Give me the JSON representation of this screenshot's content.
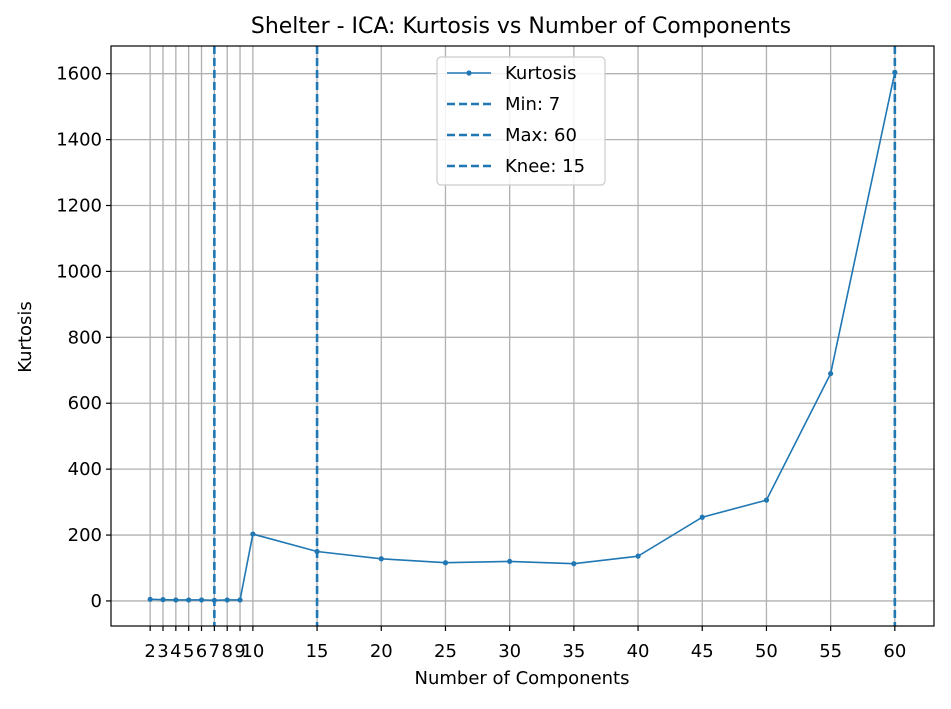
{
  "colors": {
    "series": "#1f77b4",
    "grid": "#b0b0b0",
    "axes": "#000000",
    "background": "#ffffff"
  },
  "chart_data": {
    "type": "line",
    "title": "Shelter - ICA: Kurtosis vs Number of Components",
    "xlabel": "Number of Components",
    "ylabel": "Kurtosis",
    "xlim": [
      -1.05,
      63.05
    ],
    "ylim": [
      -76,
      1684
    ],
    "grid": true,
    "legend_position": "upper center",
    "x_ticks": [
      2,
      3,
      4,
      5,
      6,
      7,
      8,
      9,
      10,
      15,
      20,
      25,
      30,
      35,
      40,
      45,
      50,
      55,
      60
    ],
    "x_tick_labels": [
      "2",
      "3",
      "4",
      "5",
      "6",
      "7",
      "8",
      "9",
      "10",
      "15",
      "20",
      "25",
      "30",
      "35",
      "40",
      "45",
      "50",
      "55",
      "60"
    ],
    "y_ticks": [
      0,
      200,
      400,
      600,
      800,
      1000,
      1200,
      1400,
      1600
    ],
    "y_tick_labels": [
      "0",
      "200",
      "400",
      "600",
      "800",
      "1000",
      "1200",
      "1400",
      "1600"
    ],
    "series": [
      {
        "name": "Kurtosis",
        "x": [
          2,
          3,
          4,
          5,
          6,
          7,
          8,
          9,
          10,
          15,
          20,
          25,
          30,
          35,
          40,
          45,
          50,
          55,
          60
        ],
        "y": [
          5,
          4,
          3,
          3,
          3,
          2,
          3,
          3,
          203,
          150,
          128,
          116,
          120,
          113,
          136,
          254,
          306,
          690,
          1604
        ],
        "color": "#1f77b4",
        "marker": "circle"
      }
    ],
    "vlines": [
      {
        "label": "Min: 7",
        "x": 7,
        "style": "dashed",
        "color": "#1f77b4"
      },
      {
        "label": "Max: 60",
        "x": 60,
        "style": "dashed",
        "color": "#1f77b4"
      },
      {
        "label": "Knee: 15",
        "x": 15,
        "style": "dashed",
        "color": "#1f77b4"
      }
    ]
  }
}
